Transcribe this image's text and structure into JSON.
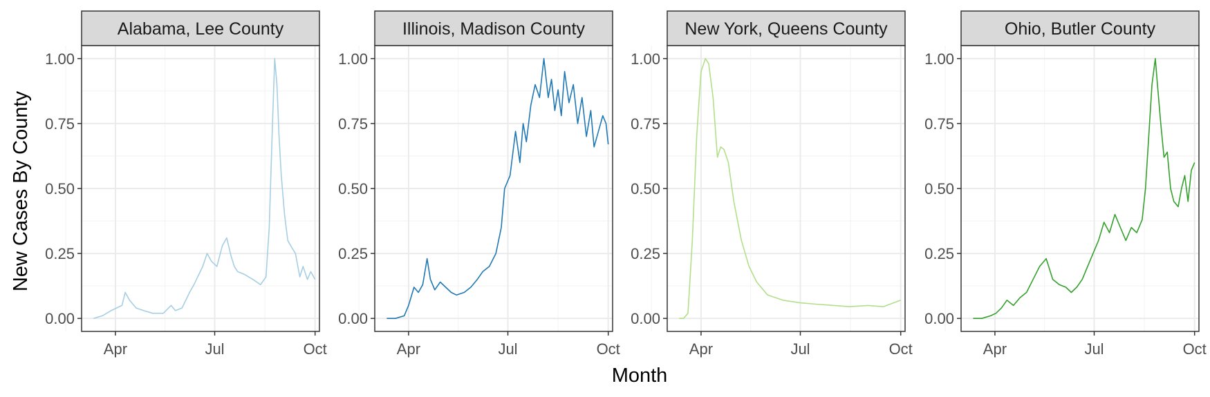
{
  "chart_data": {
    "type": "line",
    "layout": "facet_wrap",
    "xlabel": "Month",
    "ylabel": "New Cases By County",
    "x_ticks": [
      "Apr",
      "Jul",
      "Oct"
    ],
    "x_tick_dates": [
      "2020-04-01",
      "2020-07-01",
      "2020-10-01"
    ],
    "xlim": [
      "2020-03-01",
      "2020-10-05"
    ],
    "y_ticks": [
      "0.00",
      "0.25",
      "0.50",
      "0.75",
      "1.00"
    ],
    "y_tick_values": [
      0,
      0.25,
      0.5,
      0.75,
      1.0
    ],
    "ylim": [
      -0.05,
      1.05
    ],
    "grid": true,
    "panels": [
      {
        "title": "Alabama, Lee County",
        "color": "#a6cee3",
        "x": [
          "2020-03-12",
          "2020-03-20",
          "2020-03-28",
          "2020-04-02",
          "2020-04-07",
          "2020-04-10",
          "2020-04-14",
          "2020-04-20",
          "2020-04-27",
          "2020-05-05",
          "2020-05-15",
          "2020-05-22",
          "2020-05-26",
          "2020-06-01",
          "2020-06-08",
          "2020-06-12",
          "2020-06-20",
          "2020-06-24",
          "2020-06-28",
          "2020-07-03",
          "2020-07-08",
          "2020-07-12",
          "2020-07-16",
          "2020-07-19",
          "2020-07-22",
          "2020-07-28",
          "2020-08-05",
          "2020-08-12",
          "2020-08-17",
          "2020-08-20",
          "2020-08-23",
          "2020-08-25",
          "2020-08-27",
          "2020-08-29",
          "2020-08-31",
          "2020-09-03",
          "2020-09-06",
          "2020-09-10",
          "2020-09-13",
          "2020-09-17",
          "2020-09-20",
          "2020-09-24",
          "2020-09-27",
          "2020-10-01"
        ],
        "y": [
          0.0,
          0.01,
          0.03,
          0.04,
          0.05,
          0.1,
          0.07,
          0.04,
          0.03,
          0.02,
          0.02,
          0.05,
          0.03,
          0.04,
          0.1,
          0.13,
          0.2,
          0.25,
          0.22,
          0.2,
          0.28,
          0.31,
          0.24,
          0.2,
          0.18,
          0.17,
          0.15,
          0.13,
          0.16,
          0.35,
          0.75,
          1.0,
          0.9,
          0.7,
          0.55,
          0.4,
          0.3,
          0.27,
          0.25,
          0.16,
          0.2,
          0.15,
          0.18,
          0.15
        ]
      },
      {
        "title": "Illinois, Madison County",
        "color": "#1f78b4",
        "x": [
          "2020-03-12",
          "2020-03-20",
          "2020-03-28",
          "2020-04-01",
          "2020-04-06",
          "2020-04-10",
          "2020-04-14",
          "2020-04-18",
          "2020-04-21",
          "2020-04-25",
          "2020-04-30",
          "2020-05-05",
          "2020-05-10",
          "2020-05-15",
          "2020-05-22",
          "2020-05-28",
          "2020-06-03",
          "2020-06-08",
          "2020-06-14",
          "2020-06-20",
          "2020-06-25",
          "2020-06-28",
          "2020-07-03",
          "2020-07-08",
          "2020-07-12",
          "2020-07-15",
          "2020-07-18",
          "2020-07-22",
          "2020-07-26",
          "2020-07-30",
          "2020-08-03",
          "2020-08-07",
          "2020-08-10",
          "2020-08-13",
          "2020-08-16",
          "2020-08-19",
          "2020-08-22",
          "2020-08-26",
          "2020-08-30",
          "2020-09-03",
          "2020-09-07",
          "2020-09-11",
          "2020-09-15",
          "2020-09-18",
          "2020-09-22",
          "2020-09-26",
          "2020-09-29",
          "2020-10-01"
        ],
        "y": [
          0.0,
          0.0,
          0.01,
          0.05,
          0.12,
          0.1,
          0.13,
          0.23,
          0.15,
          0.11,
          0.14,
          0.12,
          0.1,
          0.09,
          0.1,
          0.12,
          0.15,
          0.18,
          0.2,
          0.25,
          0.35,
          0.5,
          0.55,
          0.72,
          0.6,
          0.75,
          0.68,
          0.82,
          0.9,
          0.85,
          1.0,
          0.85,
          0.92,
          0.8,
          0.88,
          0.78,
          0.95,
          0.83,
          0.9,
          0.75,
          0.85,
          0.7,
          0.8,
          0.66,
          0.72,
          0.78,
          0.75,
          0.67
        ]
      },
      {
        "title": "New York, Queens County",
        "color": "#b2df8a",
        "x": [
          "2020-03-12",
          "2020-03-16",
          "2020-03-20",
          "2020-03-24",
          "2020-03-28",
          "2020-04-01",
          "2020-04-05",
          "2020-04-08",
          "2020-04-12",
          "2020-04-16",
          "2020-04-19",
          "2020-04-22",
          "2020-04-26",
          "2020-05-01",
          "2020-05-08",
          "2020-05-15",
          "2020-05-22",
          "2020-06-01",
          "2020-06-15",
          "2020-07-01",
          "2020-07-15",
          "2020-08-01",
          "2020-08-15",
          "2020-09-01",
          "2020-09-15",
          "2020-10-01"
        ],
        "y": [
          0.0,
          0.0,
          0.02,
          0.3,
          0.7,
          0.95,
          1.0,
          0.98,
          0.85,
          0.62,
          0.66,
          0.65,
          0.6,
          0.45,
          0.3,
          0.2,
          0.14,
          0.09,
          0.07,
          0.06,
          0.055,
          0.05,
          0.045,
          0.05,
          0.045,
          0.07
        ]
      },
      {
        "title": "Ohio, Butler County",
        "color": "#33a02c",
        "x": [
          "2020-03-12",
          "2020-03-20",
          "2020-03-28",
          "2020-04-02",
          "2020-04-07",
          "2020-04-12",
          "2020-04-18",
          "2020-04-24",
          "2020-04-30",
          "2020-05-06",
          "2020-05-12",
          "2020-05-18",
          "2020-05-24",
          "2020-05-30",
          "2020-06-05",
          "2020-06-10",
          "2020-06-15",
          "2020-06-20",
          "2020-06-25",
          "2020-06-30",
          "2020-07-05",
          "2020-07-10",
          "2020-07-15",
          "2020-07-20",
          "2020-07-25",
          "2020-07-30",
          "2020-08-04",
          "2020-08-09",
          "2020-08-14",
          "2020-08-17",
          "2020-08-20",
          "2020-08-23",
          "2020-08-26",
          "2020-08-28",
          "2020-08-31",
          "2020-09-03",
          "2020-09-06",
          "2020-09-09",
          "2020-09-12",
          "2020-09-16",
          "2020-09-19",
          "2020-09-22",
          "2020-09-25",
          "2020-09-28",
          "2020-10-01"
        ],
        "y": [
          0.0,
          0.0,
          0.01,
          0.02,
          0.04,
          0.07,
          0.05,
          0.08,
          0.1,
          0.15,
          0.2,
          0.23,
          0.15,
          0.13,
          0.12,
          0.1,
          0.12,
          0.15,
          0.2,
          0.25,
          0.3,
          0.37,
          0.33,
          0.4,
          0.35,
          0.3,
          0.35,
          0.33,
          0.38,
          0.5,
          0.7,
          0.9,
          1.0,
          0.9,
          0.75,
          0.62,
          0.64,
          0.5,
          0.45,
          0.43,
          0.5,
          0.55,
          0.45,
          0.57,
          0.6
        ]
      }
    ]
  }
}
